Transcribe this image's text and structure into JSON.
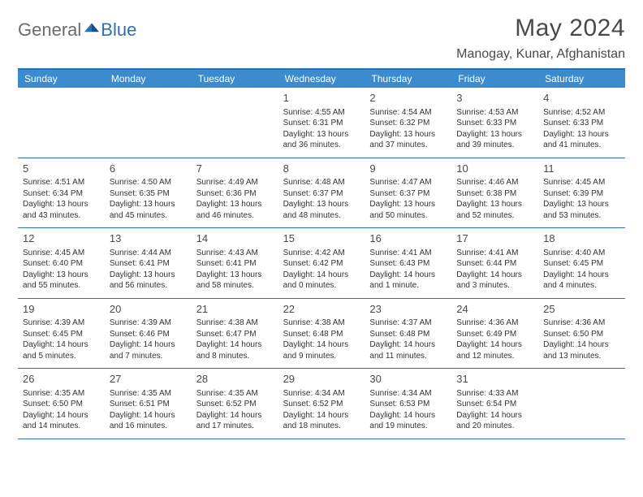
{
  "brand": {
    "part1": "General",
    "part2": "Blue"
  },
  "title": "May 2024",
  "location": "Manogay, Kunar, Afghanistan",
  "style": {
    "accent": "#3b8bcf",
    "accent_border": "#2d6fb5",
    "text": "#333333",
    "muted": "#4a4a4a",
    "background": "#ffffff",
    "title_fontsize": 30,
    "location_fontsize": 16,
    "weekday_fontsize": 12,
    "daynum_fontsize": 13,
    "body_fontsize": 10
  },
  "weekdays": [
    "Sunday",
    "Monday",
    "Tuesday",
    "Wednesday",
    "Thursday",
    "Friday",
    "Saturday"
  ],
  "weeks": [
    [
      null,
      null,
      null,
      {
        "n": "1",
        "sr": "Sunrise: 4:55 AM",
        "ss": "Sunset: 6:31 PM",
        "d1": "Daylight: 13 hours",
        "d2": "and 36 minutes."
      },
      {
        "n": "2",
        "sr": "Sunrise: 4:54 AM",
        "ss": "Sunset: 6:32 PM",
        "d1": "Daylight: 13 hours",
        "d2": "and 37 minutes."
      },
      {
        "n": "3",
        "sr": "Sunrise: 4:53 AM",
        "ss": "Sunset: 6:33 PM",
        "d1": "Daylight: 13 hours",
        "d2": "and 39 minutes."
      },
      {
        "n": "4",
        "sr": "Sunrise: 4:52 AM",
        "ss": "Sunset: 6:33 PM",
        "d1": "Daylight: 13 hours",
        "d2": "and 41 minutes."
      }
    ],
    [
      {
        "n": "5",
        "sr": "Sunrise: 4:51 AM",
        "ss": "Sunset: 6:34 PM",
        "d1": "Daylight: 13 hours",
        "d2": "and 43 minutes."
      },
      {
        "n": "6",
        "sr": "Sunrise: 4:50 AM",
        "ss": "Sunset: 6:35 PM",
        "d1": "Daylight: 13 hours",
        "d2": "and 45 minutes."
      },
      {
        "n": "7",
        "sr": "Sunrise: 4:49 AM",
        "ss": "Sunset: 6:36 PM",
        "d1": "Daylight: 13 hours",
        "d2": "and 46 minutes."
      },
      {
        "n": "8",
        "sr": "Sunrise: 4:48 AM",
        "ss": "Sunset: 6:37 PM",
        "d1": "Daylight: 13 hours",
        "d2": "and 48 minutes."
      },
      {
        "n": "9",
        "sr": "Sunrise: 4:47 AM",
        "ss": "Sunset: 6:37 PM",
        "d1": "Daylight: 13 hours",
        "d2": "and 50 minutes."
      },
      {
        "n": "10",
        "sr": "Sunrise: 4:46 AM",
        "ss": "Sunset: 6:38 PM",
        "d1": "Daylight: 13 hours",
        "d2": "and 52 minutes."
      },
      {
        "n": "11",
        "sr": "Sunrise: 4:45 AM",
        "ss": "Sunset: 6:39 PM",
        "d1": "Daylight: 13 hours",
        "d2": "and 53 minutes."
      }
    ],
    [
      {
        "n": "12",
        "sr": "Sunrise: 4:45 AM",
        "ss": "Sunset: 6:40 PM",
        "d1": "Daylight: 13 hours",
        "d2": "and 55 minutes."
      },
      {
        "n": "13",
        "sr": "Sunrise: 4:44 AM",
        "ss": "Sunset: 6:41 PM",
        "d1": "Daylight: 13 hours",
        "d2": "and 56 minutes."
      },
      {
        "n": "14",
        "sr": "Sunrise: 4:43 AM",
        "ss": "Sunset: 6:41 PM",
        "d1": "Daylight: 13 hours",
        "d2": "and 58 minutes."
      },
      {
        "n": "15",
        "sr": "Sunrise: 4:42 AM",
        "ss": "Sunset: 6:42 PM",
        "d1": "Daylight: 14 hours",
        "d2": "and 0 minutes."
      },
      {
        "n": "16",
        "sr": "Sunrise: 4:41 AM",
        "ss": "Sunset: 6:43 PM",
        "d1": "Daylight: 14 hours",
        "d2": "and 1 minute."
      },
      {
        "n": "17",
        "sr": "Sunrise: 4:41 AM",
        "ss": "Sunset: 6:44 PM",
        "d1": "Daylight: 14 hours",
        "d2": "and 3 minutes."
      },
      {
        "n": "18",
        "sr": "Sunrise: 4:40 AM",
        "ss": "Sunset: 6:45 PM",
        "d1": "Daylight: 14 hours",
        "d2": "and 4 minutes."
      }
    ],
    [
      {
        "n": "19",
        "sr": "Sunrise: 4:39 AM",
        "ss": "Sunset: 6:45 PM",
        "d1": "Daylight: 14 hours",
        "d2": "and 5 minutes."
      },
      {
        "n": "20",
        "sr": "Sunrise: 4:39 AM",
        "ss": "Sunset: 6:46 PM",
        "d1": "Daylight: 14 hours",
        "d2": "and 7 minutes."
      },
      {
        "n": "21",
        "sr": "Sunrise: 4:38 AM",
        "ss": "Sunset: 6:47 PM",
        "d1": "Daylight: 14 hours",
        "d2": "and 8 minutes."
      },
      {
        "n": "22",
        "sr": "Sunrise: 4:38 AM",
        "ss": "Sunset: 6:48 PM",
        "d1": "Daylight: 14 hours",
        "d2": "and 9 minutes."
      },
      {
        "n": "23",
        "sr": "Sunrise: 4:37 AM",
        "ss": "Sunset: 6:48 PM",
        "d1": "Daylight: 14 hours",
        "d2": "and 11 minutes."
      },
      {
        "n": "24",
        "sr": "Sunrise: 4:36 AM",
        "ss": "Sunset: 6:49 PM",
        "d1": "Daylight: 14 hours",
        "d2": "and 12 minutes."
      },
      {
        "n": "25",
        "sr": "Sunrise: 4:36 AM",
        "ss": "Sunset: 6:50 PM",
        "d1": "Daylight: 14 hours",
        "d2": "and 13 minutes."
      }
    ],
    [
      {
        "n": "26",
        "sr": "Sunrise: 4:35 AM",
        "ss": "Sunset: 6:50 PM",
        "d1": "Daylight: 14 hours",
        "d2": "and 14 minutes."
      },
      {
        "n": "27",
        "sr": "Sunrise: 4:35 AM",
        "ss": "Sunset: 6:51 PM",
        "d1": "Daylight: 14 hours",
        "d2": "and 16 minutes."
      },
      {
        "n": "28",
        "sr": "Sunrise: 4:35 AM",
        "ss": "Sunset: 6:52 PM",
        "d1": "Daylight: 14 hours",
        "d2": "and 17 minutes."
      },
      {
        "n": "29",
        "sr": "Sunrise: 4:34 AM",
        "ss": "Sunset: 6:52 PM",
        "d1": "Daylight: 14 hours",
        "d2": "and 18 minutes."
      },
      {
        "n": "30",
        "sr": "Sunrise: 4:34 AM",
        "ss": "Sunset: 6:53 PM",
        "d1": "Daylight: 14 hours",
        "d2": "and 19 minutes."
      },
      {
        "n": "31",
        "sr": "Sunrise: 4:33 AM",
        "ss": "Sunset: 6:54 PM",
        "d1": "Daylight: 14 hours",
        "d2": "and 20 minutes."
      },
      null
    ]
  ]
}
